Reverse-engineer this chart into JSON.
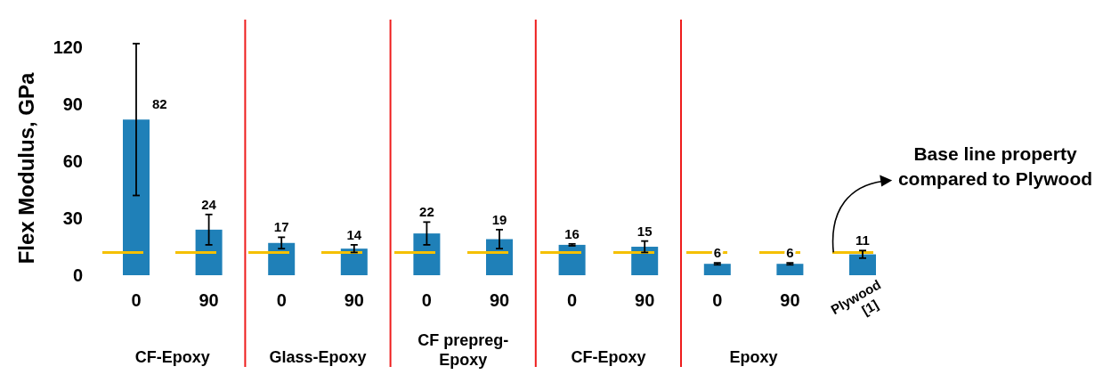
{
  "chart_data": {
    "type": "bar",
    "ylabel": "Flex Modulus, GPa",
    "categories": [
      "0",
      "90",
      "0",
      "90",
      "0",
      "90",
      "0",
      "90",
      "0",
      "90",
      "Plywood [1]"
    ],
    "values": [
      82,
      24,
      17,
      14,
      22,
      19,
      16,
      15,
      6,
      6,
      11
    ],
    "errors": [
      40,
      8,
      3,
      2,
      6,
      5,
      0.5,
      3,
      0.5,
      0.5,
      2
    ],
    "color": "#1f80b8",
    "data_labels": true,
    "ylim": [
      0,
      122
    ],
    "yticks": [
      0,
      30,
      60,
      90,
      120
    ],
    "ref_lines": [
      {
        "axis": "y",
        "value": 12,
        "label": "Base line property compared to Plywood",
        "color": "#f5c000",
        "line_style": "dashed"
      }
    ],
    "annotations": [
      "CF-Epoxy",
      "Glass-Epoxy",
      "CF prepreg-Epoxy",
      "CF-Epoxy",
      "Epoxy"
    ]
  }
}
